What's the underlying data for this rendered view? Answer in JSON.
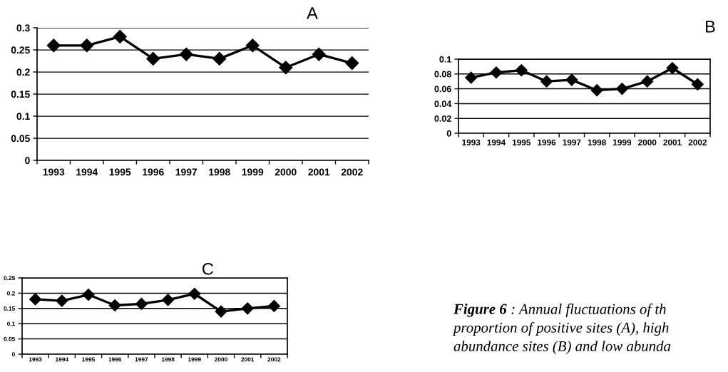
{
  "chart_data": [
    {
      "type": "line",
      "title": "A",
      "categories": [
        "1993",
        "1994",
        "1995",
        "1996",
        "1997",
        "1998",
        "1999",
        "2000",
        "2001",
        "2002"
      ],
      "series": [
        {
          "color": "#000000",
          "values": [
            0.26,
            0.26,
            0.28,
            0.23,
            0.24,
            0.23,
            0.26,
            0.21,
            0.24,
            0.22
          ]
        }
      ],
      "ylim": [
        0,
        0.3
      ],
      "yticks": [
        0,
        0.05,
        0.1,
        0.15,
        0.2,
        0.25,
        0.3
      ],
      "grid": "y",
      "marker": "diamond",
      "line_style": "solid"
    },
    {
      "type": "line",
      "title": "B",
      "categories": [
        "1993",
        "1994",
        "1995",
        "1996",
        "1997",
        "1998",
        "1999",
        "2000",
        "2001",
        "2002"
      ],
      "series": [
        {
          "color": "#000000",
          "values": [
            0.075,
            0.082,
            0.085,
            0.07,
            0.072,
            0.058,
            0.06,
            0.07,
            0.088,
            0.066
          ]
        }
      ],
      "ylim": [
        0,
        0.1
      ],
      "yticks": [
        0,
        0.02,
        0.04,
        0.06,
        0.08,
        0.1
      ],
      "grid": "y",
      "marker": "diamond",
      "line_style": "solid"
    },
    {
      "type": "line",
      "title": "C",
      "categories": [
        "1993",
        "1994",
        "1995",
        "1996",
        "1997",
        "1998",
        "1999",
        "2000",
        "2001",
        "2002"
      ],
      "series": [
        {
          "color": "#000000",
          "values": [
            0.18,
            0.175,
            0.195,
            0.16,
            0.165,
            0.178,
            0.198,
            0.14,
            0.15,
            0.158
          ]
        }
      ],
      "ylim": [
        0,
        0.25
      ],
      "yticks": [
        0,
        0.05,
        0.1,
        0.15,
        0.2,
        0.25
      ],
      "grid": "y",
      "marker": "diamond",
      "line_style": "solid"
    },
    {
      "type": "other",
      "annotations": [
        "Figure 6",
        ": Annual fluctuations of th",
        "proportion of positive sites (A), high",
        "abundance sites (B) and low abunda"
      ]
    }
  ]
}
